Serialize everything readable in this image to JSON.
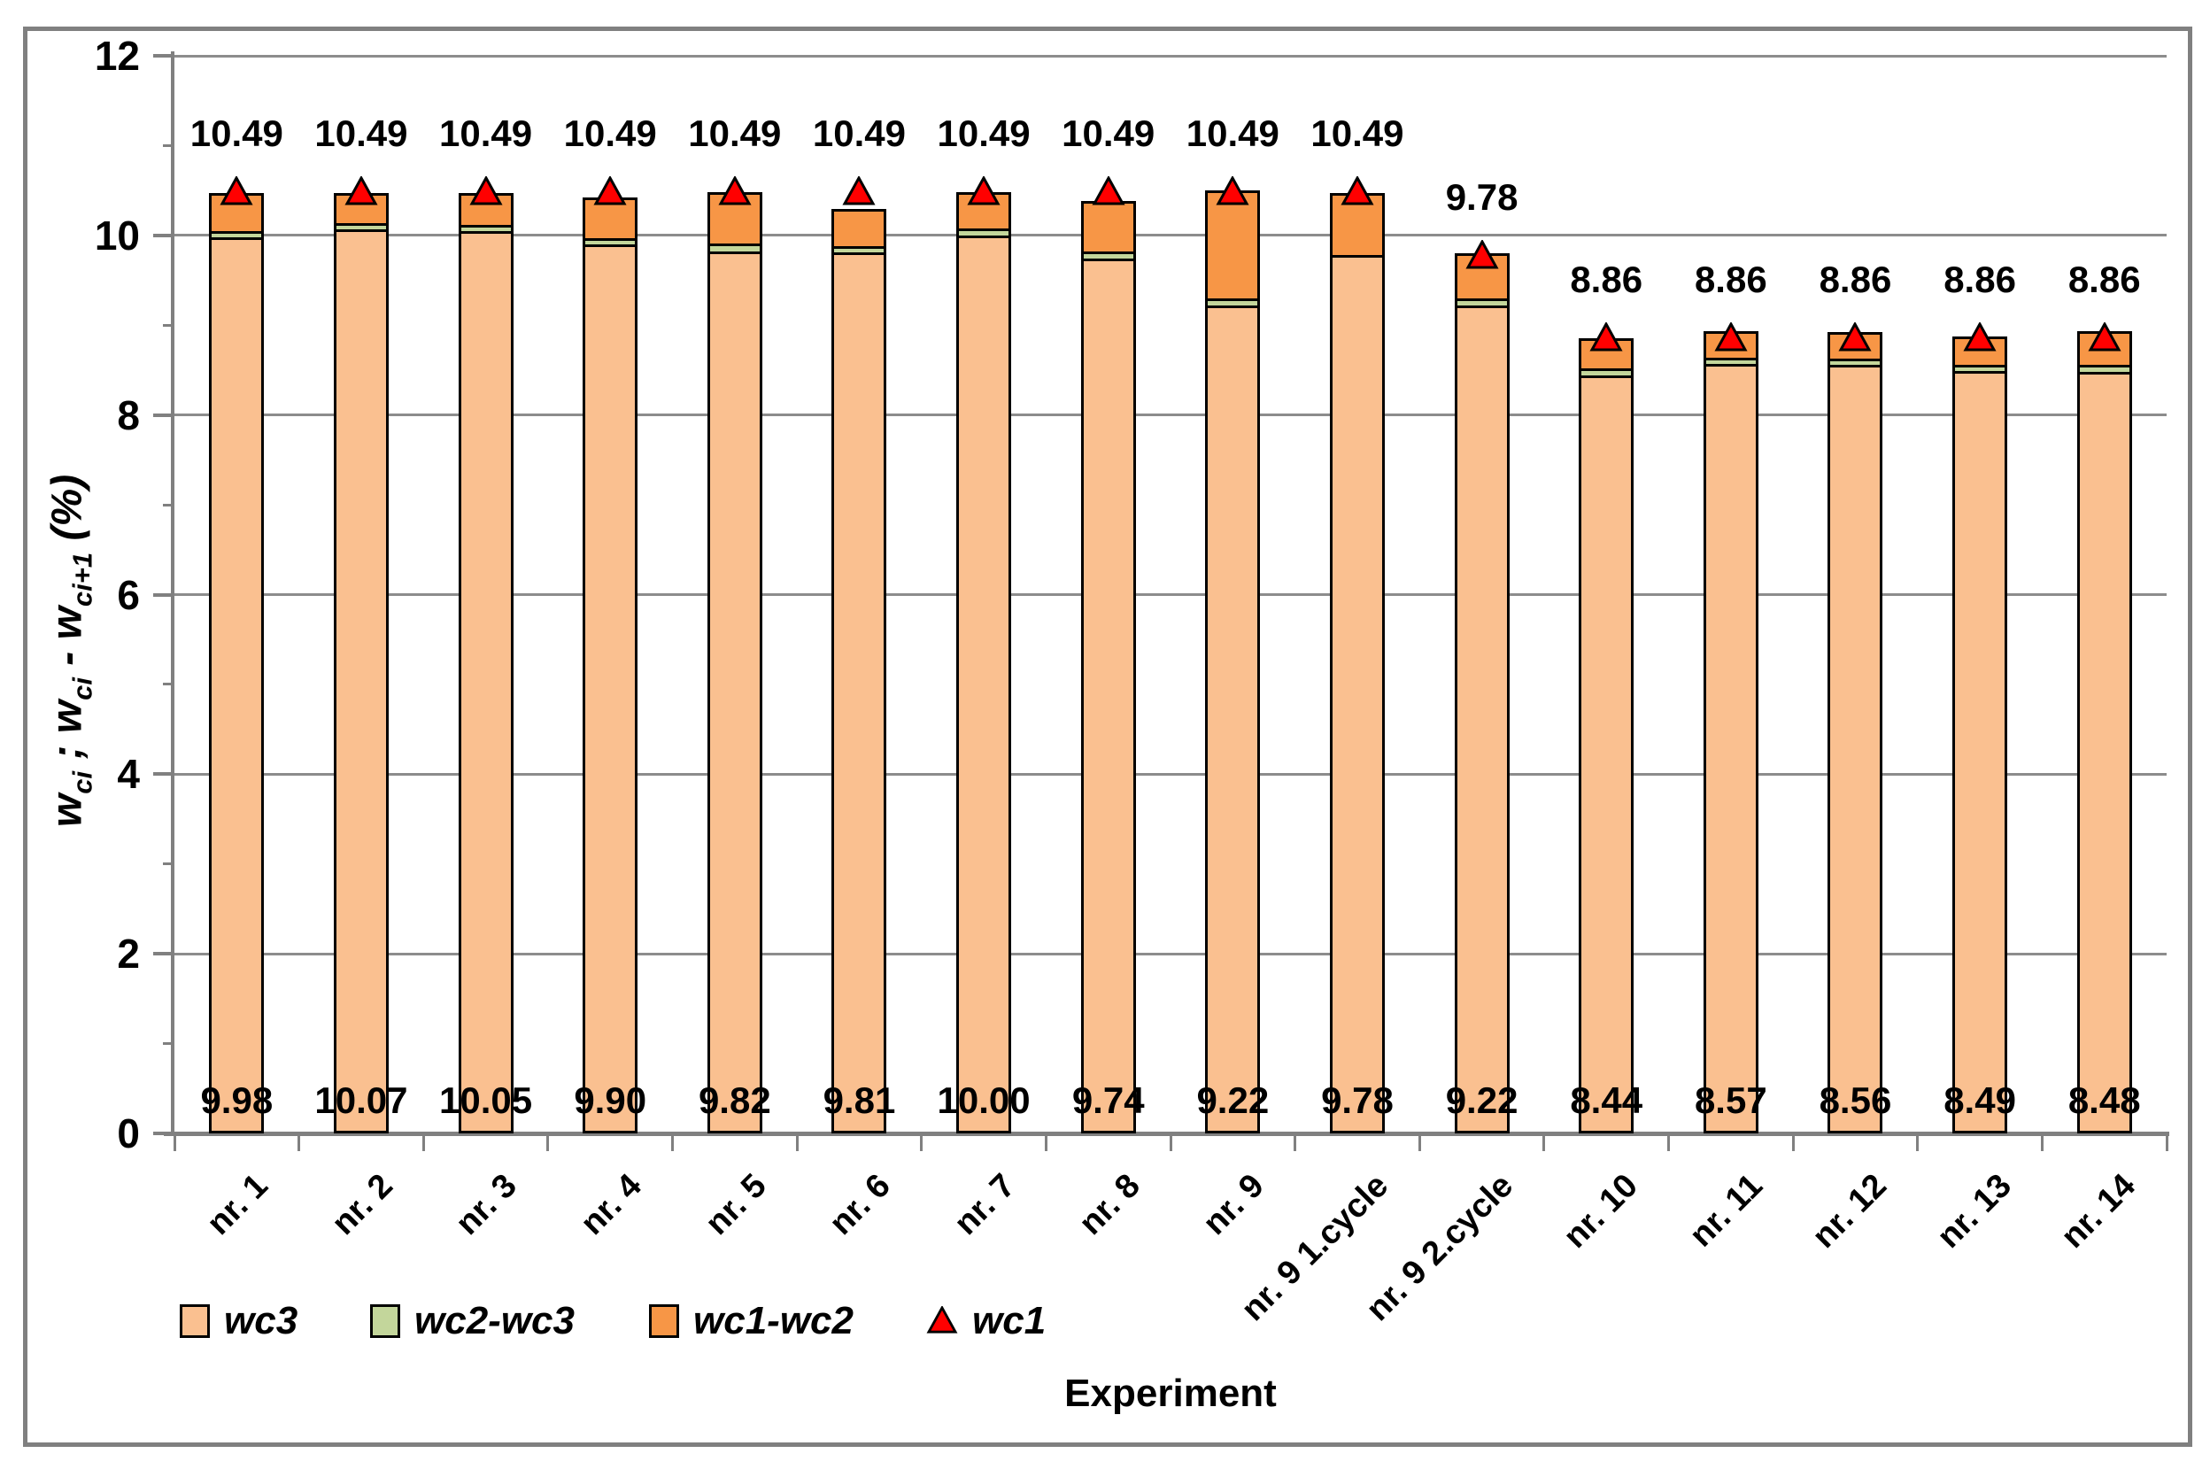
{
  "chart_data": {
    "type": "bar",
    "stacked": true,
    "title": "",
    "xlabel": "Experiment",
    "ylabel": "wci ; wci - wci+1 (%)",
    "ylabel_parts": [
      {
        "text": "w",
        "sub": "ci"
      },
      {
        "text": " ; w",
        "sub": "ci"
      },
      {
        "text": " - w",
        "sub": "ci+1"
      },
      {
        "text": " (%)",
        "sub": ""
      }
    ],
    "ylim": [
      0,
      12
    ],
    "y_major_ticks": [
      0,
      2,
      4,
      6,
      8,
      10,
      12
    ],
    "y_minor_ticks": [
      1,
      3,
      5,
      7,
      9,
      11
    ],
    "grid": "horizontal-major",
    "legend_position": "bottom",
    "categories": [
      "nr. 1",
      "nr. 2",
      "nr. 3",
      "nr. 4",
      "nr. 5",
      "nr. 6",
      "nr. 7",
      "nr. 8",
      "nr. 9",
      "nr. 9 1.cycle",
      "nr. 9 2.cycle",
      "nr. 10",
      "nr. 11",
      "nr. 12",
      "nr. 13",
      "nr. 14"
    ],
    "series": [
      {
        "name": "wc3",
        "type": "bar",
        "color": "#FAC090",
        "values": [
          9.98,
          10.07,
          10.05,
          9.9,
          9.82,
          9.81,
          10.0,
          9.74,
          9.22,
          9.78,
          9.22,
          8.44,
          8.57,
          8.56,
          8.49,
          8.48
        ]
      },
      {
        "name": "wc2-wc3",
        "type": "bar",
        "color": "#C3D69B",
        "values": [
          0.07,
          0.07,
          0.07,
          0.07,
          0.09,
          0.07,
          0.08,
          0.08,
          0.08,
          0.0,
          0.08,
          0.08,
          0.07,
          0.07,
          0.07,
          0.08
        ]
      },
      {
        "name": "wc1-wc2",
        "type": "bar",
        "color": "#F79646",
        "values": [
          0.42,
          0.33,
          0.35,
          0.45,
          0.57,
          0.41,
          0.4,
          0.56,
          1.2,
          0.69,
          0.5,
          0.33,
          0.29,
          0.29,
          0.31,
          0.37
        ]
      },
      {
        "name": "wc1",
        "type": "triangle-marker",
        "color": "#FF0000",
        "values": [
          10.49,
          10.49,
          10.49,
          10.49,
          10.49,
          10.49,
          10.49,
          10.49,
          10.49,
          10.49,
          9.78,
          8.86,
          8.86,
          8.86,
          8.86,
          8.86
        ]
      }
    ],
    "bar_top_labels": [
      "10.49",
      "10.49",
      "10.49",
      "10.49",
      "10.49",
      "10.49",
      "10.49",
      "10.49",
      "10.49",
      "10.49",
      "9.78",
      "8.86",
      "8.86",
      "8.86",
      "8.86",
      "8.86"
    ],
    "bar_bottom_labels": [
      "9.98",
      "10.07",
      "10.05",
      "9.90",
      "9.82",
      "9.81",
      "10.00",
      "9.74",
      "9.22",
      "9.78",
      "9.22",
      "8.44",
      "8.57",
      "8.56",
      "8.49",
      "8.48"
    ],
    "colors": {
      "grid": "#8C8C8C",
      "axis": "#808080",
      "frame_border": "#808080",
      "bar_outline": "#000000",
      "marker_fill": "#FF0000",
      "text": "#000000"
    }
  }
}
